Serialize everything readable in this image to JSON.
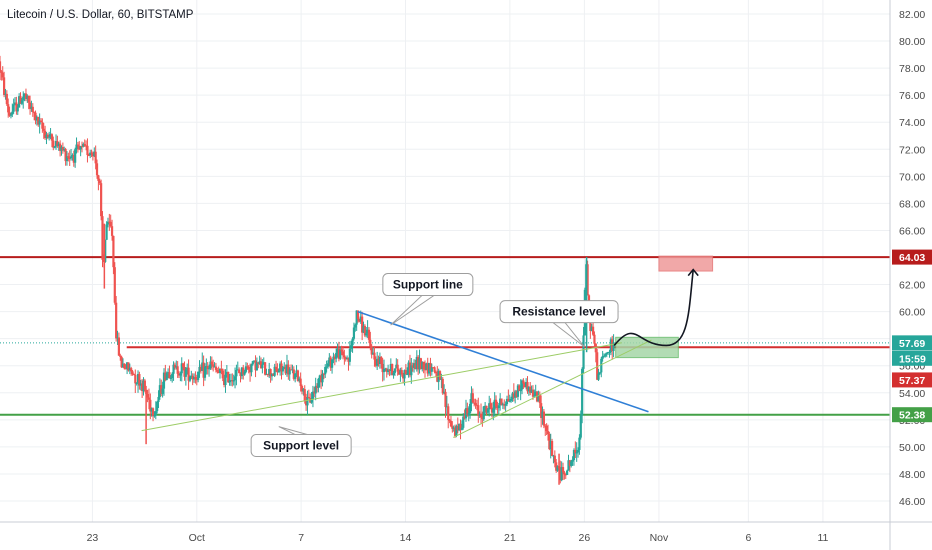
{
  "chart_data": {
    "type": "candlestick",
    "title": "Litecoin / U.S. Dollar, 60, BITSTAMP",
    "ylim": [
      44.5,
      83
    ],
    "y_ticks": [
      46,
      48,
      50,
      52,
      54,
      56,
      58,
      60,
      62,
      64,
      66,
      68,
      70,
      72,
      74,
      76,
      78,
      80,
      82
    ],
    "x_tick_labels": [
      {
        "label": "23",
        "day": 23
      },
      {
        "label": "Oct",
        "day": 30
      },
      {
        "label": "7",
        "day": 37
      },
      {
        "label": "14",
        "day": 44
      },
      {
        "label": "21",
        "day": 51
      },
      {
        "label": "26",
        "day": 56
      },
      {
        "label": "Nov",
        "day": 61
      },
      {
        "label": "6",
        "day": 67
      },
      {
        "label": "11",
        "day": 72
      }
    ],
    "xlim_days": [
      16.8,
      76.5
    ],
    "price_path": [
      [
        16.8,
        78.5
      ],
      [
        17.5,
        74.5
      ],
      [
        18.5,
        76.0
      ],
      [
        19.5,
        73.8
      ],
      [
        20.5,
        72.5
      ],
      [
        21.5,
        71.5
      ],
      [
        22.5,
        72.0
      ],
      [
        23.2,
        71.8
      ],
      [
        23.6,
        69.0
      ],
      [
        23.8,
        62.5
      ],
      [
        24.0,
        66.5
      ],
      [
        24.4,
        66.0
      ],
      [
        24.7,
        58.0
      ],
      [
        25.0,
        56.2
      ],
      [
        25.8,
        55.5
      ],
      [
        26.5,
        54.5
      ],
      [
        27.2,
        52.5
      ],
      [
        28.0,
        55.5
      ],
      [
        29.0,
        55.8
      ],
      [
        30.0,
        55.2
      ],
      [
        31.0,
        56.0
      ],
      [
        32.0,
        55.0
      ],
      [
        33.0,
        55.5
      ],
      [
        34.0,
        56.2
      ],
      [
        35.0,
        55.5
      ],
      [
        36.0,
        55.8
      ],
      [
        37.0,
        55.0
      ],
      [
        37.5,
        53.0
      ],
      [
        38.5,
        55.5
      ],
      [
        39.5,
        57.0
      ],
      [
        40.3,
        56.5
      ],
      [
        40.8,
        59.8
      ],
      [
        41.5,
        58.2
      ],
      [
        42.0,
        56.5
      ],
      [
        43.0,
        55.8
      ],
      [
        44.0,
        55.5
      ],
      [
        45.0,
        56.2
      ],
      [
        46.0,
        55.8
      ],
      [
        46.5,
        54.5
      ],
      [
        47.0,
        52.0
      ],
      [
        47.5,
        51.0
      ],
      [
        48.5,
        53.5
      ],
      [
        49.0,
        52.5
      ],
      [
        50.0,
        53.0
      ],
      [
        51.0,
        53.5
      ],
      [
        51.5,
        54.0
      ],
      [
        52.0,
        54.8
      ],
      [
        53.0,
        53.5
      ],
      [
        53.5,
        51.5
      ],
      [
        54.0,
        49.0
      ],
      [
        54.5,
        48.0
      ],
      [
        55.0,
        48.5
      ],
      [
        55.5,
        49.5
      ],
      [
        55.8,
        51.0
      ],
      [
        56.0,
        57.5
      ],
      [
        56.2,
        63.5
      ],
      [
        56.4,
        59.5
      ],
      [
        56.7,
        58.2
      ],
      [
        57.0,
        55.0
      ],
      [
        57.3,
        56.5
      ],
      [
        57.6,
        57.0
      ],
      [
        58.0,
        57.5
      ]
    ],
    "spikes": [
      {
        "day": 23.8,
        "low": 61.7,
        "high": 66.5
      },
      {
        "day": 56.15,
        "low": 57.0,
        "high": 64.03
      },
      {
        "day": 54.3,
        "low": 47.2,
        "high": 49.5
      },
      {
        "day": 26.6,
        "low": 50.2,
        "high": 54.0
      }
    ],
    "horizontal_levels": [
      {
        "price": 64.03,
        "color": "#b71c1c",
        "from_day": 16.8
      },
      {
        "price": 57.37,
        "color": "#d32f2f",
        "from_day": 25.3
      },
      {
        "price": 52.38,
        "color": "#43a047",
        "from_day": 16.8
      }
    ],
    "trend_lines": [
      {
        "name": "support-line",
        "color": "#2f7fd6",
        "from": [
          40.8,
          60.0
        ],
        "to": [
          60.3,
          52.6
        ]
      },
      {
        "name": "rising-support-a",
        "color": "#9ccc65",
        "from": [
          26.3,
          51.2
        ],
        "to": [
          58.5,
          57.7
        ]
      },
      {
        "name": "rising-support-b",
        "color": "#9ccc65",
        "from": [
          47.2,
          50.7
        ],
        "to": [
          60.5,
          57.9
        ]
      }
    ],
    "zones": [
      {
        "name": "buy-zone",
        "from_day": 58.1,
        "to_day": 62.3,
        "low": 56.6,
        "high": 58.1,
        "fill": "#a5d6a7",
        "stroke": "#66bb6a"
      },
      {
        "name": "target-zone",
        "from_day": 61.0,
        "to_day": 64.6,
        "low": 63.0,
        "high": 64.1,
        "fill": "#ef9a9a",
        "stroke": "#e57373"
      }
    ],
    "projection": {
      "points": [
        [
          58.0,
          57.5
        ],
        [
          59.5,
          59.5
        ],
        [
          61.5,
          57.5
        ],
        [
          63.0,
          60.0
        ],
        [
          63.3,
          63.1
        ]
      ],
      "color": "#131722"
    },
    "annotations": [
      {
        "text": "Support line",
        "day": 45.5,
        "price": 62.0
      },
      {
        "text": "Resistance level",
        "day": 54.3,
        "price": 60.0
      },
      {
        "text": "Support level",
        "day": 37.0,
        "price": 50.1
      }
    ],
    "price_tags": [
      {
        "text": "64.03",
        "price": 64.03,
        "bg": "#b71c1c"
      },
      {
        "text": "57.69",
        "price": 57.69,
        "bg": "#26a69a"
      },
      {
        "text": "15:59",
        "price": 56.55,
        "bg": "#26a69a"
      },
      {
        "text": "57.37",
        "price": 54.95,
        "bg": "#d32f2f"
      },
      {
        "text": "52.38",
        "price": 52.38,
        "bg": "#43a047"
      }
    ],
    "current_price": 57.69,
    "up_color": "#26a69a",
    "down_color": "#ef5350"
  }
}
